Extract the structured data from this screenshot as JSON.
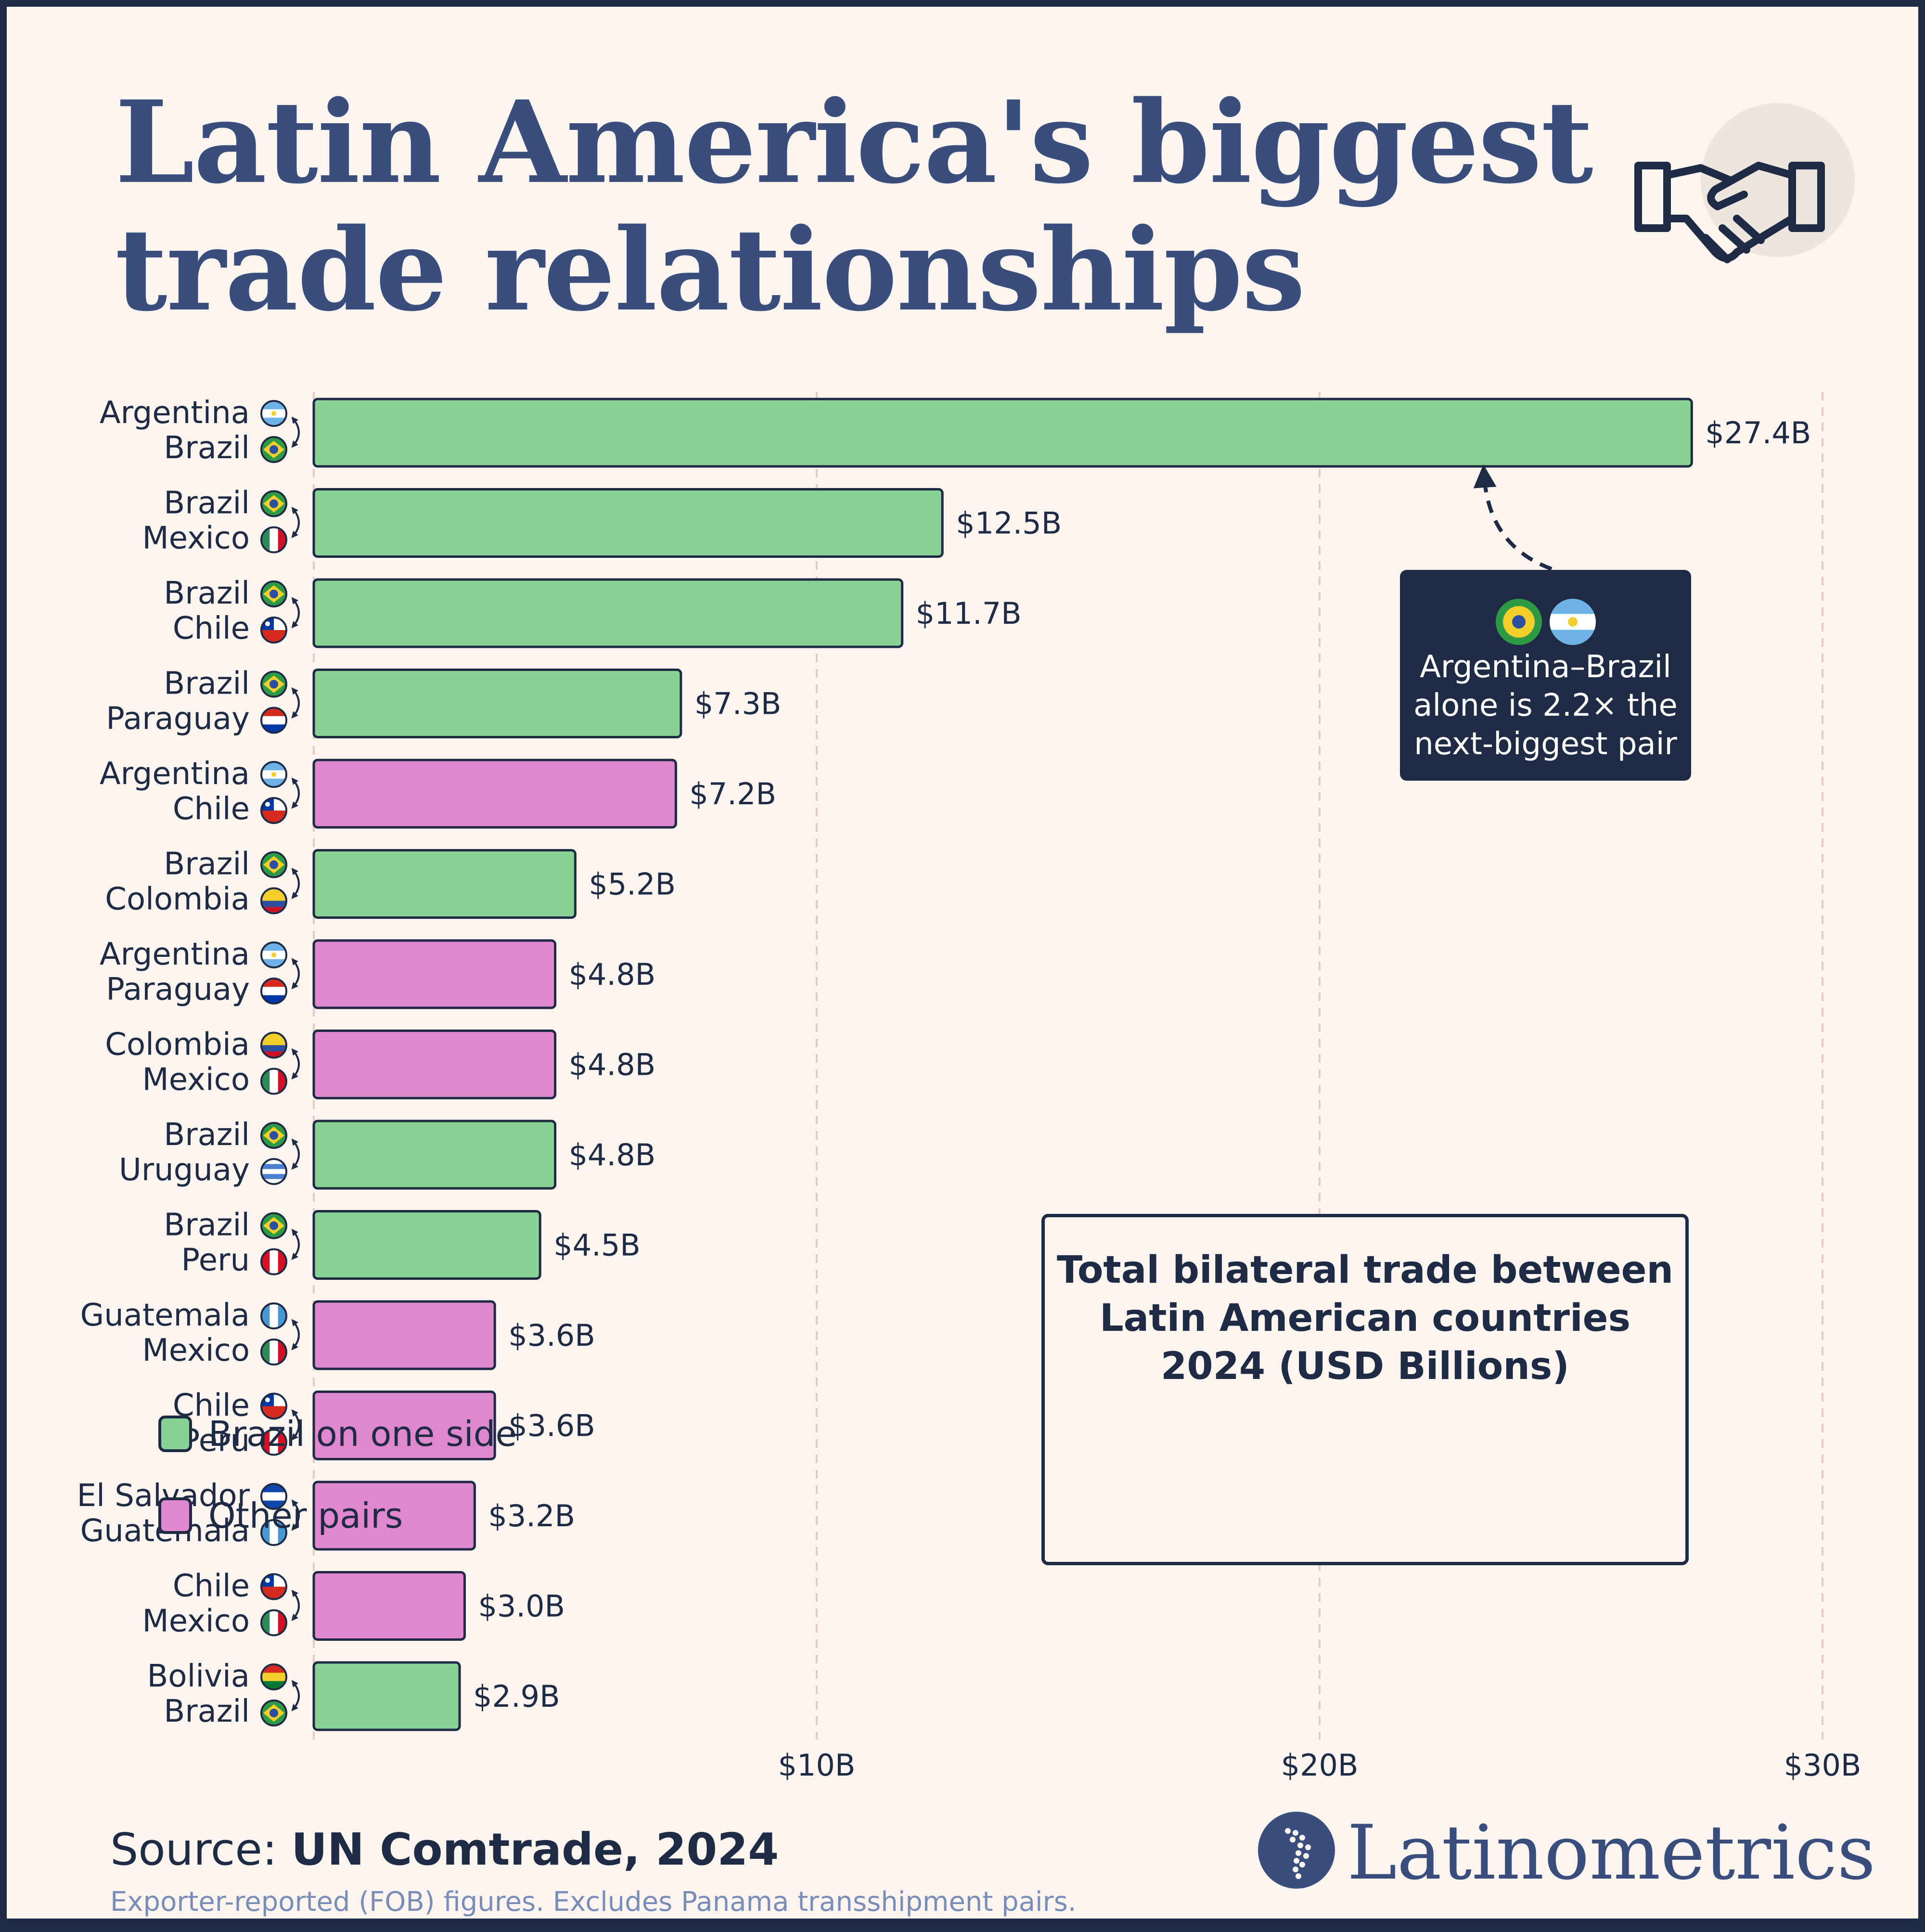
{
  "title_line1": "Latin America's biggest",
  "title_line2": "trade relationships",
  "colors": {
    "brazil": "#88d293",
    "other": "#e088cd",
    "ink": "#1f2a44",
    "title": "#3a4e7e",
    "background": "#fcf5ef",
    "grid": "#e6c9c2"
  },
  "legend": {
    "title": "Total bilateral trade between Latin American countries 2024 (USD Billions)",
    "items": [
      {
        "label": "Brazil on one side",
        "group": "brazil"
      },
      {
        "label": "Other pairs",
        "group": "other"
      }
    ]
  },
  "callout": {
    "text_line1": "Argentina–Brazil",
    "text_line2": "alone is 2.2× the",
    "text_line3": "next-biggest pair"
  },
  "source_label": "Source:",
  "source_value": "UN Comtrade, 2024",
  "note": "Exporter-reported (FOB) figures. Excludes Panama transshipment pairs.",
  "brand": "Latinometrics",
  "icons": {
    "header": "handshake-icon",
    "brand_logo": "latin-america-map-icon"
  },
  "chart_data": {
    "type": "bar",
    "orientation": "horizontal",
    "title": "Total bilateral trade between Latin American countries 2024 (USD Billions)",
    "xlim": [
      0,
      30
    ],
    "xticks": [
      10,
      20,
      30
    ],
    "xtick_labels": [
      "$10B",
      "$20B",
      "$30B"
    ],
    "grid": "vertical dashed",
    "legend_position": "bottom-right",
    "rows": [
      {
        "a": "Argentina",
        "b": "Brazil",
        "value": 27.4,
        "label": "$27.4B",
        "group": "brazil"
      },
      {
        "a": "Brazil",
        "b": "Mexico",
        "value": 12.5,
        "label": "$12.5B",
        "group": "brazil"
      },
      {
        "a": "Brazil",
        "b": "Chile",
        "value": 11.7,
        "label": "$11.7B",
        "group": "brazil"
      },
      {
        "a": "Brazil",
        "b": "Paraguay",
        "value": 7.3,
        "label": "$7.3B",
        "group": "brazil"
      },
      {
        "a": "Argentina",
        "b": "Chile",
        "value": 7.2,
        "label": "$7.2B",
        "group": "other"
      },
      {
        "a": "Brazil",
        "b": "Colombia",
        "value": 5.2,
        "label": "$5.2B",
        "group": "brazil"
      },
      {
        "a": "Argentina",
        "b": "Paraguay",
        "value": 4.8,
        "label": "$4.8B",
        "group": "other"
      },
      {
        "a": "Colombia",
        "b": "Mexico",
        "value": 4.8,
        "label": "$4.8B",
        "group": "other"
      },
      {
        "a": "Brazil",
        "b": "Uruguay",
        "value": 4.8,
        "label": "$4.8B",
        "group": "brazil"
      },
      {
        "a": "Brazil",
        "b": "Peru",
        "value": 4.5,
        "label": "$4.5B",
        "group": "brazil"
      },
      {
        "a": "Guatemala",
        "b": "Mexico",
        "value": 3.6,
        "label": "$3.6B",
        "group": "other"
      },
      {
        "a": "Chile",
        "b": "Peru",
        "value": 3.6,
        "label": "$3.6B",
        "group": "other"
      },
      {
        "a": "El Salvador",
        "b": "Guatemala",
        "value": 3.2,
        "label": "$3.2B",
        "group": "other"
      },
      {
        "a": "Chile",
        "b": "Mexico",
        "value": 3.0,
        "label": "$3.0B",
        "group": "other"
      },
      {
        "a": "Bolivia",
        "b": "Brazil",
        "value": 2.9,
        "label": "$2.9B",
        "group": "brazil"
      }
    ]
  }
}
